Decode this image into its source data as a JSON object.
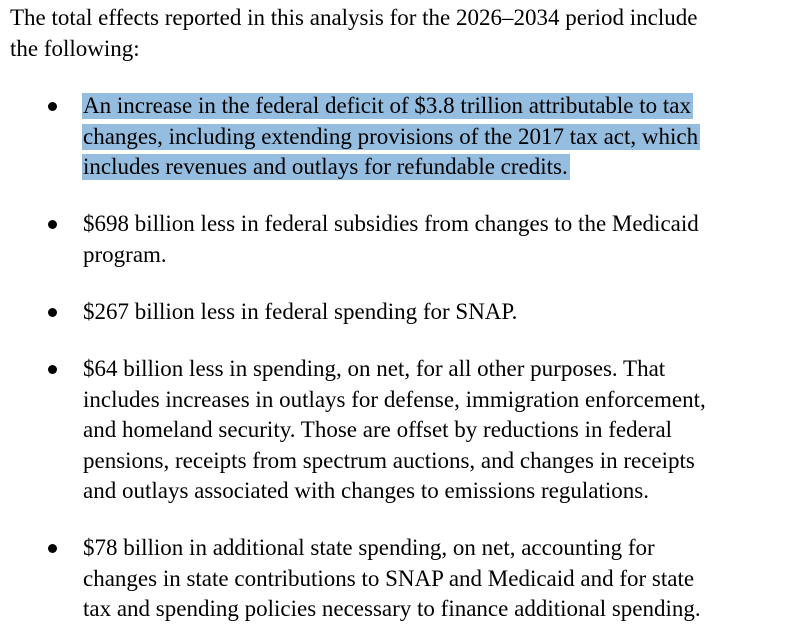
{
  "intro": {
    "lines": [
      "The total effects reported in this analysis for the 2026–2034 period include",
      "the following:"
    ]
  },
  "bullets": [
    {
      "highlighted": true,
      "lines": [
        "An increase in the federal deficit of $3.8 trillion attributable to tax",
        "changes, including extending provisions of the 2017 tax act, which",
        "includes revenues and outlays for refundable credits."
      ]
    },
    {
      "highlighted": false,
      "lines": [
        "$698 billion less in federal subsidies from changes to the Medicaid",
        "program."
      ]
    },
    {
      "highlighted": false,
      "lines": [
        "$267 billion less in federal spending for SNAP."
      ]
    },
    {
      "highlighted": false,
      "lines": [
        "$64 billion less in spending, on net, for all other purposes. That",
        "includes increases in outlays for defense, immigration enforcement,",
        "and homeland security. Those are offset by reductions in federal",
        "pensions, receipts from spectrum auctions, and changes in receipts",
        "and outlays associated with changes to emissions regulations."
      ]
    },
    {
      "highlighted": false,
      "lines": [
        "$78 billion in additional state spending, on net, accounting for",
        "changes in state contributions to SNAP and Medicaid and for state",
        "tax and spending policies necessary to finance additional spending."
      ]
    }
  ],
  "colors": {
    "selection_highlight": "#94bde0",
    "text": "#000000",
    "background": "#ffffff"
  }
}
